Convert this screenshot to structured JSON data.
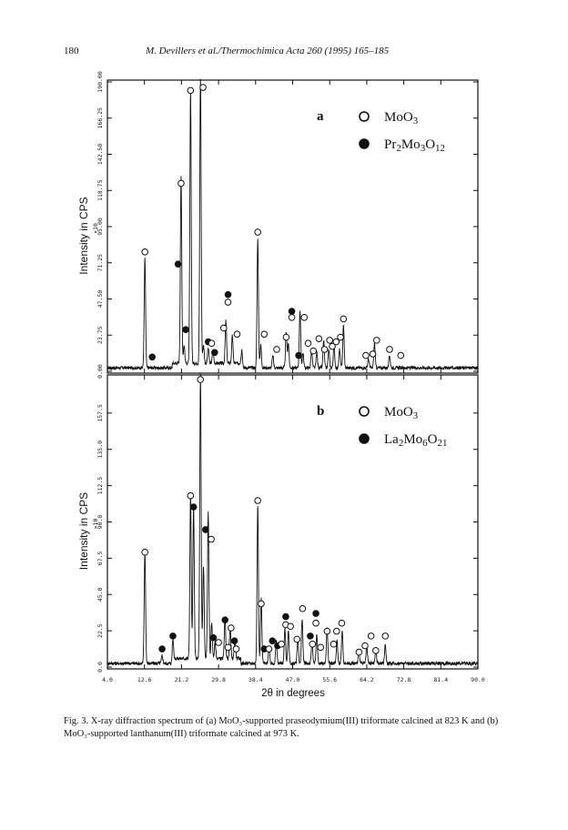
{
  "header": {
    "page_number": "180",
    "citation": "M. Devillers et al./Thermochimica Acta 260 (1995) 165–185"
  },
  "figure": {
    "x_axis_label": "2θ in degrees",
    "x_ticks": [
      "4.0",
      "12.6",
      "21.2",
      "29.8",
      "38.4",
      "47.0",
      "55.6",
      "64.2",
      "72.8",
      "81.4",
      "90.0"
    ],
    "caption": {
      "prefix": "Fig. 3.",
      "text": "X-ray diffraction spectrum of (a) MoO₃-supported praseodymium(III) triformate calcined at 823 K and (b) MoO₃-supported lanthanum(III) triformate calcined at 973 K."
    }
  },
  "chart_data": [
    {
      "type": "line",
      "panel_label": "a",
      "ylabel": "Intensity in CPS",
      "y_multiplier": "×10",
      "y_ticks": [
        "0.00",
        "23.75",
        "47.50",
        "71.25",
        "95.00",
        "118.75",
        "142.50",
        "166.25",
        "190.00"
      ],
      "ylim": [
        0,
        190
      ],
      "xlim": [
        4,
        90
      ],
      "legend": [
        {
          "symbol": "open-circle",
          "label": "MoO3"
        },
        {
          "symbol": "filled-circle",
          "label": "Pr2Mo3O12"
        }
      ],
      "peaks": [
        {
          "x": 12.7,
          "y": 72
        },
        {
          "x": 21.1,
          "y": 122
        },
        {
          "x": 21.8,
          "y": 12
        },
        {
          "x": 23.3,
          "y": 178
        },
        {
          "x": 25.6,
          "y": 190
        },
        {
          "x": 26.3,
          "y": 12
        },
        {
          "x": 27.4,
          "y": 10
        },
        {
          "x": 28.5,
          "y": 8
        },
        {
          "x": 31.5,
          "y": 28
        },
        {
          "x": 33.0,
          "y": 18
        },
        {
          "x": 35.2,
          "y": 12
        },
        {
          "x": 38.9,
          "y": 85
        },
        {
          "x": 39.6,
          "y": 15
        },
        {
          "x": 42.4,
          "y": 8
        },
        {
          "x": 45.5,
          "y": 23
        },
        {
          "x": 46.0,
          "y": 16
        },
        {
          "x": 48.7,
          "y": 38
        },
        {
          "x": 49.4,
          "y": 10
        },
        {
          "x": 51.4,
          "y": 12
        },
        {
          "x": 52.6,
          "y": 10
        },
        {
          "x": 54.2,
          "y": 18
        },
        {
          "x": 55.4,
          "y": 12
        },
        {
          "x": 56.6,
          "y": 15
        },
        {
          "x": 57.9,
          "y": 12
        },
        {
          "x": 58.8,
          "y": 28
        },
        {
          "x": 64.6,
          "y": 6
        },
        {
          "x": 66.0,
          "y": 16
        },
        {
          "x": 69.5,
          "y": 8
        }
      ],
      "markers": [
        {
          "x": 12.7,
          "y": 76,
          "phase": "MoO3"
        },
        {
          "x": 14.4,
          "y": 7,
          "phase": "Pr2Mo3O12"
        },
        {
          "x": 20.4,
          "y": 68,
          "phase": "Pr2Mo3O12"
        },
        {
          "x": 21.1,
          "y": 121,
          "phase": "MoO3"
        },
        {
          "x": 22.2,
          "y": 25,
          "phase": "Pr2Mo3O12"
        },
        {
          "x": 23.3,
          "y": 182,
          "phase": "MoO3"
        },
        {
          "x": 26.2,
          "y": 184,
          "phase": "MoO3"
        },
        {
          "x": 27.4,
          "y": 17,
          "phase": "Pr2Mo3O12"
        },
        {
          "x": 28.2,
          "y": 16,
          "phase": "MoO3"
        },
        {
          "x": 28.9,
          "y": 10,
          "phase": "Pr2Mo3O12"
        },
        {
          "x": 31.0,
          "y": 26,
          "phase": "MoO3"
        },
        {
          "x": 32.0,
          "y": 48,
          "phase": "Pr2Mo3O12"
        },
        {
          "x": 32.0,
          "y": 43,
          "phase": "MoO3"
        },
        {
          "x": 34.1,
          "y": 22,
          "phase": "MoO3"
        },
        {
          "x": 38.9,
          "y": 89,
          "phase": "MoO3"
        },
        {
          "x": 40.4,
          "y": 22,
          "phase": "MoO3"
        },
        {
          "x": 43.3,
          "y": 12,
          "phase": "MoO3"
        },
        {
          "x": 45.5,
          "y": 20,
          "phase": "MoO3"
        },
        {
          "x": 46.8,
          "y": 37,
          "phase": "Pr2Mo3O12"
        },
        {
          "x": 46.8,
          "y": 33,
          "phase": "MoO3"
        },
        {
          "x": 48.4,
          "y": 8,
          "phase": "Pr2Mo3O12"
        },
        {
          "x": 49.7,
          "y": 33,
          "phase": "MoO3"
        },
        {
          "x": 50.6,
          "y": 16,
          "phase": "MoO3"
        },
        {
          "x": 51.8,
          "y": 11,
          "phase": "MoO3"
        },
        {
          "x": 53.1,
          "y": 19,
          "phase": "MoO3"
        },
        {
          "x": 54.4,
          "y": 12,
          "phase": "MoO3"
        },
        {
          "x": 55.6,
          "y": 18,
          "phase": "MoO3"
        },
        {
          "x": 56.2,
          "y": 14,
          "phase": "MoO3"
        },
        {
          "x": 57.1,
          "y": 17,
          "phase": "MoO3"
        },
        {
          "x": 58.1,
          "y": 20,
          "phase": "MoO3"
        },
        {
          "x": 58.8,
          "y": 32,
          "phase": "MoO3"
        },
        {
          "x": 64.0,
          "y": 8,
          "phase": "MoO3"
        },
        {
          "x": 65.6,
          "y": 9,
          "phase": "MoO3"
        },
        {
          "x": 66.5,
          "y": 18,
          "phase": "MoO3"
        },
        {
          "x": 69.5,
          "y": 12,
          "phase": "MoO3"
        },
        {
          "x": 72.1,
          "y": 8,
          "phase": "MoO3"
        }
      ]
    },
    {
      "type": "line",
      "panel_label": "b",
      "ylabel": "Intensity in CPS",
      "y_multiplier": "×10",
      "y_ticks": [
        "0.0",
        "22.5",
        "45.0",
        "67.5",
        "90.0",
        "112.5",
        "135.0",
        "157.5"
      ],
      "ylim": [
        0,
        180
      ],
      "xlim": [
        4,
        90
      ],
      "legend": [
        {
          "symbol": "open-circle",
          "label": "MoO3"
        },
        {
          "symbol": "filled-circle",
          "label": "La2Mo6O21"
        }
      ],
      "peaks": [
        {
          "x": 12.7,
          "y": 70
        },
        {
          "x": 16.7,
          "y": 5
        },
        {
          "x": 19.2,
          "y": 12
        },
        {
          "x": 23.3,
          "y": 101
        },
        {
          "x": 24.0,
          "y": 94
        },
        {
          "x": 25.6,
          "y": 176
        },
        {
          "x": 26.3,
          "y": 58
        },
        {
          "x": 27.4,
          "y": 91
        },
        {
          "x": 28.2,
          "y": 22
        },
        {
          "x": 29.0,
          "y": 10
        },
        {
          "x": 31.3,
          "y": 25
        },
        {
          "x": 32.5,
          "y": 18
        },
        {
          "x": 33.6,
          "y": 12
        },
        {
          "x": 38.9,
          "y": 98
        },
        {
          "x": 39.7,
          "y": 40
        },
        {
          "x": 41.5,
          "y": 10
        },
        {
          "x": 43.2,
          "y": 14
        },
        {
          "x": 45.2,
          "y": 22
        },
        {
          "x": 46.0,
          "y": 20
        },
        {
          "x": 48.2,
          "y": 16
        },
        {
          "x": 49.2,
          "y": 28
        },
        {
          "x": 51.5,
          "y": 14
        },
        {
          "x": 52.6,
          "y": 18
        },
        {
          "x": 55.0,
          "y": 22
        },
        {
          "x": 57.3,
          "y": 14
        },
        {
          "x": 58.5,
          "y": 20
        },
        {
          "x": 62.4,
          "y": 8
        },
        {
          "x": 64.2,
          "y": 10
        },
        {
          "x": 66.3,
          "y": 9
        },
        {
          "x": 68.5,
          "y": 12
        }
      ],
      "markers": [
        {
          "x": 12.7,
          "y": 69,
          "phase": "MoO3"
        },
        {
          "x": 16.7,
          "y": 9,
          "phase": "La2Mo6O21"
        },
        {
          "x": 19.2,
          "y": 17,
          "phase": "La2Mo6O21"
        },
        {
          "x": 23.3,
          "y": 104,
          "phase": "MoO3"
        },
        {
          "x": 24.0,
          "y": 97,
          "phase": "La2Mo6O21"
        },
        {
          "x": 25.6,
          "y": 176,
          "phase": "MoO3"
        },
        {
          "x": 26.8,
          "y": 83,
          "phase": "La2Mo6O21"
        },
        {
          "x": 28.1,
          "y": 77,
          "phase": "MoO3"
        },
        {
          "x": 28.6,
          "y": 16,
          "phase": "La2Mo6O21"
        },
        {
          "x": 29.8,
          "y": 13,
          "phase": "MoO3"
        },
        {
          "x": 31.3,
          "y": 27,
          "phase": "La2Mo6O21"
        },
        {
          "x": 32.0,
          "y": 10,
          "phase": "MoO3"
        },
        {
          "x": 32.7,
          "y": 22,
          "phase": "MoO3"
        },
        {
          "x": 33.5,
          "y": 14,
          "phase": "La2Mo6O21"
        },
        {
          "x": 33.9,
          "y": 9,
          "phase": "MoO3"
        },
        {
          "x": 38.9,
          "y": 101,
          "phase": "MoO3"
        },
        {
          "x": 39.7,
          "y": 37,
          "phase": "MoO3"
        },
        {
          "x": 40.4,
          "y": 9,
          "phase": "La2Mo6O21"
        },
        {
          "x": 41.5,
          "y": 9,
          "phase": "MoO3"
        },
        {
          "x": 42.3,
          "y": 14,
          "phase": "La2Mo6O21"
        },
        {
          "x": 43.5,
          "y": 11,
          "phase": "La2Mo6O21"
        },
        {
          "x": 44.4,
          "y": 12,
          "phase": "MoO3"
        },
        {
          "x": 45.4,
          "y": 29,
          "phase": "La2Mo6O21"
        },
        {
          "x": 45.4,
          "y": 24,
          "phase": "MoO3"
        },
        {
          "x": 46.5,
          "y": 23,
          "phase": "MoO3"
        },
        {
          "x": 48.0,
          "y": 15,
          "phase": "MoO3"
        },
        {
          "x": 49.3,
          "y": 34,
          "phase": "MoO3"
        },
        {
          "x": 51.1,
          "y": 17,
          "phase": "La2Mo6O21"
        },
        {
          "x": 51.6,
          "y": 12,
          "phase": "MoO3"
        },
        {
          "x": 52.4,
          "y": 31,
          "phase": "La2Mo6O21"
        },
        {
          "x": 52.4,
          "y": 25,
          "phase": "MoO3"
        },
        {
          "x": 53.5,
          "y": 10,
          "phase": "MoO3"
        },
        {
          "x": 55.0,
          "y": 20,
          "phase": "MoO3"
        },
        {
          "x": 56.5,
          "y": 12,
          "phase": "MoO3"
        },
        {
          "x": 57.2,
          "y": 20,
          "phase": "MoO3"
        },
        {
          "x": 58.4,
          "y": 25,
          "phase": "MoO3"
        },
        {
          "x": 62.4,
          "y": 7,
          "phase": "MoO3"
        },
        {
          "x": 63.8,
          "y": 11,
          "phase": "MoO3"
        },
        {
          "x": 65.2,
          "y": 17,
          "phase": "MoO3"
        },
        {
          "x": 66.3,
          "y": 8,
          "phase": "MoO3"
        },
        {
          "x": 68.5,
          "y": 17,
          "phase": "MoO3"
        }
      ]
    }
  ]
}
